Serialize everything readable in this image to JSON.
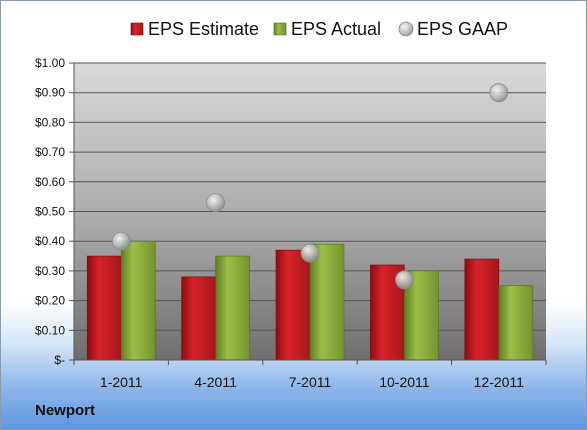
{
  "company": "Newport",
  "colors": {
    "estimate": "#c0141a",
    "actual": "#8fb03c",
    "gaap": "#b8b8b8"
  },
  "chart_data": {
    "type": "bar",
    "categories": [
      "1-2011",
      "4-2011",
      "7-2011",
      "10-2011",
      "12-2011"
    ],
    "series": [
      {
        "name": "EPS Estimate",
        "type": "bar",
        "values": [
          0.35,
          0.28,
          0.37,
          0.32,
          0.34
        ]
      },
      {
        "name": "EPS Actual",
        "type": "bar",
        "values": [
          0.4,
          0.35,
          0.39,
          0.3,
          0.25
        ]
      },
      {
        "name": "EPS GAAP",
        "type": "scatter",
        "values": [
          0.4,
          0.53,
          0.36,
          0.27,
          0.9
        ]
      }
    ],
    "y_ticks": [
      "$-",
      "$0.10",
      "$0.20",
      "$0.30",
      "$0.40",
      "$0.50",
      "$0.60",
      "$0.70",
      "$0.80",
      "$0.90",
      "$1.00"
    ],
    "ylim": [
      0,
      1.0
    ],
    "grid": true,
    "legend": "top"
  }
}
